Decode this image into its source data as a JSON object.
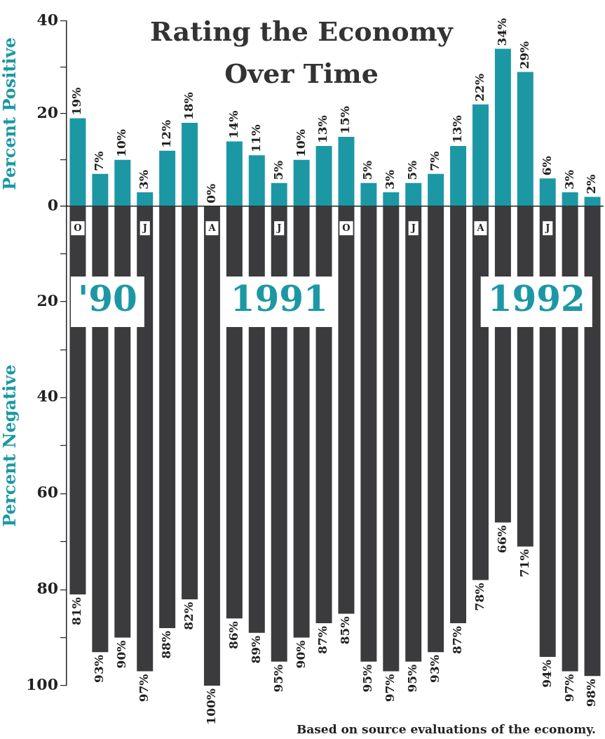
{
  "chart_data": [
    {
      "type": "bar",
      "title": "Rating the Economy Over Time",
      "ylabel": "Percent Positive",
      "categories": [
        null,
        null,
        null,
        null,
        null,
        null,
        null,
        null,
        null,
        null,
        null,
        null,
        null,
        null,
        null,
        null,
        null,
        null,
        null,
        null,
        null,
        null,
        null,
        null
      ],
      "series": [
        {
          "color": "#1c98a4",
          "values": [
            19,
            7,
            10,
            3,
            12,
            18,
            0,
            14,
            11,
            5,
            10,
            13,
            15,
            5,
            3,
            5,
            7,
            13,
            22,
            34,
            29,
            6,
            3,
            2
          ],
          "value_labels": [
            "19%",
            "7%",
            "10%",
            "3%",
            "12%",
            "18%",
            "0%",
            "14%",
            "11%",
            "5%",
            "10%",
            "13%",
            "15%",
            "5%",
            "3%",
            "5%",
            "7%",
            "13%",
            "22%",
            "34%",
            "29%",
            "6%",
            "3%",
            "2%"
          ]
        }
      ],
      "ylim": [
        0,
        40
      ],
      "yticks": [
        40,
        {
          "value": 30,
          "label": null
        },
        20,
        {
          "value": 10,
          "label": null
        },
        0
      ],
      "tick_labels": "y"
    },
    {
      "type": "bar",
      "ylabel": "Percent Negative",
      "categories": [
        "O",
        null,
        null,
        "J",
        null,
        null,
        "A",
        null,
        null,
        "J",
        null,
        null,
        "O",
        null,
        null,
        "J",
        null,
        null,
        "A",
        null,
        null,
        "J",
        null,
        null
      ],
      "series": [
        {
          "color": "#3b3b3d",
          "values": [
            81,
            93,
            90,
            97,
            88,
            82,
            100,
            86,
            89,
            95,
            90,
            87,
            85,
            95,
            97,
            95,
            93,
            87,
            78,
            66,
            71,
            94,
            97,
            98
          ],
          "value_labels": [
            "81%",
            "93%",
            "90%",
            "97%",
            "88%",
            "82%",
            "100%",
            "86%",
            "89%",
            "95%",
            "90%",
            "87%",
            "85%",
            "95%",
            "97%",
            "95%",
            "93%",
            "87%",
            "78%",
            "66%",
            "71%",
            "94%",
            "97%",
            "98%"
          ]
        }
      ],
      "ylim": [
        100,
        0
      ],
      "yticks": [
        {
          "value": 0,
          "label": null
        },
        {
          "value": 10,
          "label": null
        },
        20,
        {
          "value": 30,
          "label": null
        },
        40,
        {
          "value": 50,
          "label": null
        },
        60,
        {
          "value": 70,
          "label": null
        },
        80,
        {
          "value": 90,
          "label": null
        },
        100
      ],
      "annotations": [
        "'90",
        "1991",
        "1992",
        "Based on source evaluations of the economy."
      ]
    }
  ]
}
